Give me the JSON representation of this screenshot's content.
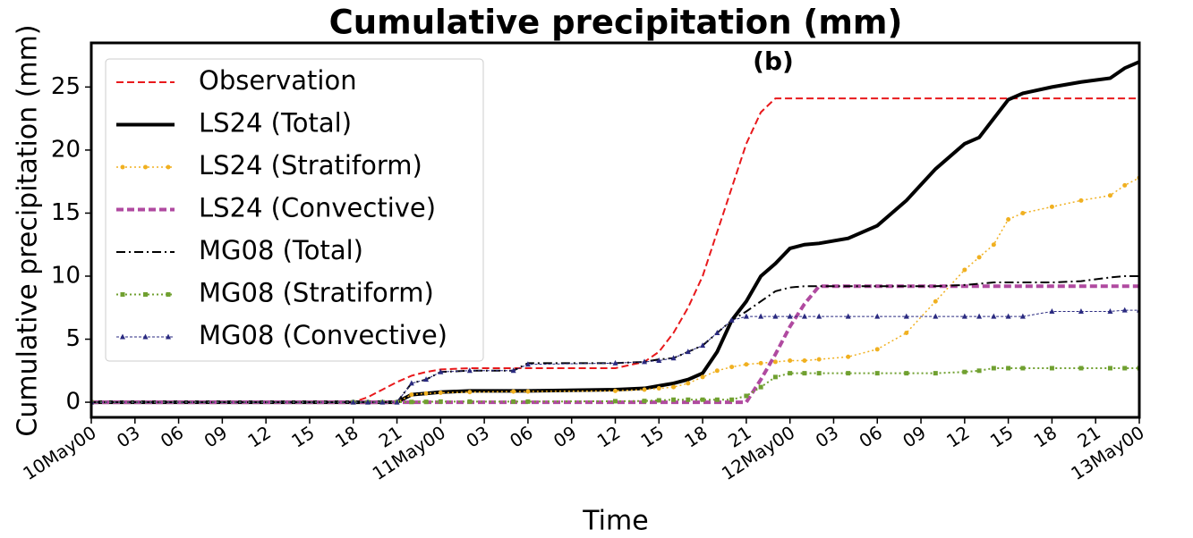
{
  "chart_data": {
    "type": "line",
    "title": "Cumulative precipitation (mm)",
    "annotation": "(b)",
    "x_label": "Time",
    "y_label": "Cumulative precipitation (mm)",
    "x": [
      0,
      18,
      19,
      20,
      21,
      22,
      23,
      24,
      26,
      29,
      30,
      36,
      38,
      39,
      40,
      41,
      42,
      43,
      44,
      45,
      46,
      47,
      48,
      49,
      50,
      52,
      54,
      56,
      58,
      60,
      61,
      62,
      63,
      64,
      66,
      68,
      70,
      71,
      72
    ],
    "xlim": [
      0,
      72
    ],
    "xticks": [
      {
        "value": 0,
        "label": "10May00"
      },
      {
        "value": 3,
        "label": "03"
      },
      {
        "value": 6,
        "label": "06"
      },
      {
        "value": 9,
        "label": "09"
      },
      {
        "value": 12,
        "label": "12"
      },
      {
        "value": 15,
        "label": "15"
      },
      {
        "value": 18,
        "label": "18"
      },
      {
        "value": 21,
        "label": "21"
      },
      {
        "value": 24,
        "label": "11May00"
      },
      {
        "value": 27,
        "label": "03"
      },
      {
        "value": 30,
        "label": "06"
      },
      {
        "value": 33,
        "label": "09"
      },
      {
        "value": 36,
        "label": "12"
      },
      {
        "value": 39,
        "label": "15"
      },
      {
        "value": 42,
        "label": "18"
      },
      {
        "value": 45,
        "label": "21"
      },
      {
        "value": 48,
        "label": "12May00"
      },
      {
        "value": 51,
        "label": "03"
      },
      {
        "value": 54,
        "label": "06"
      },
      {
        "value": 57,
        "label": "09"
      },
      {
        "value": 60,
        "label": "12"
      },
      {
        "value": 63,
        "label": "15"
      },
      {
        "value": 66,
        "label": "18"
      },
      {
        "value": 69,
        "label": "21"
      },
      {
        "value": 72,
        "label": "13May00"
      }
    ],
    "ylim": [
      -1.2,
      28.5
    ],
    "yticks": [
      0,
      5,
      10,
      15,
      20,
      25
    ],
    "grid": false,
    "legend": "upper left",
    "series": [
      {
        "name": "Observation",
        "color": "#e8191c",
        "linestyle": "dashed",
        "linewidth": 2,
        "marker": "none",
        "values": [
          0,
          0,
          0.4,
          1.0,
          1.6,
          2.1,
          2.4,
          2.6,
          2.7,
          2.7,
          2.7,
          2.7,
          3.2,
          4.0,
          5.5,
          7.5,
          10,
          13.5,
          17,
          20.5,
          23,
          24.1,
          24.1,
          24.1,
          24.1,
          24.1,
          24.1,
          24.1,
          24.1,
          24.1,
          24.1,
          24.1,
          24.1,
          24.1,
          24.1,
          24.1,
          24.1,
          24.1,
          24.1
        ]
      },
      {
        "name": "LS24 (Total)",
        "color": "#000000",
        "linestyle": "solid",
        "linewidth": 4,
        "marker": "none",
        "values": [
          0,
          0,
          0,
          0,
          0,
          0.6,
          0.7,
          0.8,
          0.9,
          0.9,
          0.9,
          1.0,
          1.1,
          1.3,
          1.5,
          1.8,
          2.3,
          4.0,
          6.5,
          8.0,
          10.0,
          11.0,
          12.2,
          12.5,
          12.6,
          13.0,
          14.0,
          16.0,
          18.5,
          20.5,
          21.0,
          22.5,
          24.0,
          24.5,
          25.0,
          25.4,
          25.7,
          26.5,
          27.0
        ]
      },
      {
        "name": "LS24 (Stratiform)",
        "color": "#f0b020",
        "linestyle": "dotted",
        "linewidth": 1.5,
        "marker": "circle",
        "values": [
          0,
          0,
          0,
          0,
          0,
          0.6,
          0.7,
          0.75,
          0.8,
          0.85,
          0.85,
          0.9,
          1.0,
          1.1,
          1.2,
          1.5,
          2.0,
          2.5,
          2.8,
          3.0,
          3.1,
          3.2,
          3.3,
          3.3,
          3.4,
          3.6,
          4.2,
          5.5,
          8.0,
          10.5,
          11.5,
          12.5,
          14.5,
          15.0,
          15.5,
          16.0,
          16.4,
          17.2,
          17.8
        ]
      },
      {
        "name": "LS24 (Convective)",
        "color": "#b04aa0",
        "linestyle": "dashed",
        "linewidth": 4,
        "marker": "none",
        "values": [
          0,
          0,
          0,
          0,
          0,
          0,
          0,
          0,
          0,
          0,
          0,
          0,
          0,
          0,
          0,
          0,
          0,
          0,
          0,
          0,
          1.8,
          3.8,
          6.0,
          7.8,
          9.2,
          9.2,
          9.2,
          9.2,
          9.2,
          9.2,
          9.2,
          9.2,
          9.2,
          9.2,
          9.2,
          9.2,
          9.2,
          9.2,
          9.2
        ]
      },
      {
        "name": "MG08 (Total)",
        "color": "#000000",
        "linestyle": "dashdot",
        "linewidth": 2,
        "marker": "none",
        "values": [
          0,
          0,
          0,
          0,
          0,
          1.5,
          1.8,
          2.4,
          2.5,
          2.5,
          3.1,
          3.1,
          3.2,
          3.4,
          3.5,
          4.0,
          4.5,
          5.5,
          6.5,
          7.2,
          8.0,
          8.8,
          9.1,
          9.2,
          9.2,
          9.2,
          9.2,
          9.2,
          9.2,
          9.3,
          9.4,
          9.5,
          9.5,
          9.5,
          9.5,
          9.6,
          9.9,
          10.0,
          10.0
        ]
      },
      {
        "name": "MG08 (Stratiform)",
        "color": "#70a030",
        "linestyle": "dotted",
        "linewidth": 2,
        "marker": "square",
        "values": [
          0,
          0,
          0,
          0,
          0,
          0.02,
          0.03,
          0.05,
          0.05,
          0.05,
          0.05,
          0.08,
          0.1,
          0.15,
          0.2,
          0.2,
          0.2,
          0.2,
          0.2,
          0.5,
          1.2,
          2.0,
          2.3,
          2.3,
          2.3,
          2.3,
          2.3,
          2.3,
          2.3,
          2.4,
          2.5,
          2.7,
          2.7,
          2.7,
          2.7,
          2.7,
          2.7,
          2.7,
          2.7
        ]
      },
      {
        "name": "MG08 (Convective)",
        "color": "#2a2a80",
        "linestyle": "finedash",
        "linewidth": 1,
        "marker": "triangle",
        "values": [
          0,
          0,
          0,
          0,
          0,
          1.5,
          1.8,
          2.4,
          2.5,
          2.5,
          3.0,
          3.1,
          3.2,
          3.3,
          3.5,
          4.0,
          4.5,
          5.5,
          6.5,
          6.8,
          6.8,
          6.8,
          6.8,
          6.8,
          6.8,
          6.8,
          6.8,
          6.8,
          6.8,
          6.8,
          6.8,
          6.8,
          6.8,
          6.8,
          7.2,
          7.2,
          7.2,
          7.3,
          7.3
        ]
      }
    ]
  }
}
